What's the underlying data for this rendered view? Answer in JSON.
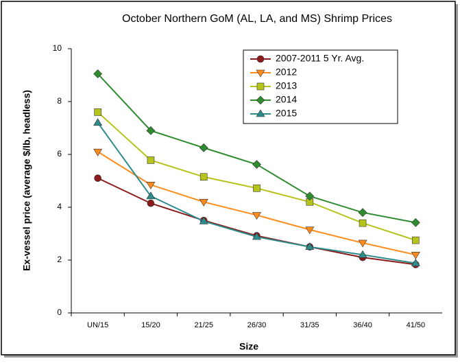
{
  "chart_data": {
    "type": "line",
    "title": "October Northern GoM (AL, LA, and MS) Shrimp Prices",
    "x_label": "Size",
    "y_label": "Ex-vessel price (average $/lb, headless)",
    "categories": [
      "UN/15",
      "15/20",
      "21/25",
      "26/30",
      "31/35",
      "36/40",
      "41/50"
    ],
    "series": [
      {
        "name": "2007-2011 5 Yr. Avg.",
        "color": "#8b1a1a",
        "marker": "circle",
        "values": [
          5.1,
          4.15,
          3.5,
          2.92,
          2.5,
          2.1,
          1.83
        ]
      },
      {
        "name": "2012",
        "color": "#ff8c1a",
        "marker": "triangle-down",
        "values": [
          6.1,
          4.85,
          4.2,
          3.7,
          3.15,
          2.65,
          2.2
        ]
      },
      {
        "name": "2013",
        "color": "#b5c31a",
        "marker": "square",
        "values": [
          7.6,
          5.78,
          5.15,
          4.72,
          4.2,
          3.4,
          2.75
        ]
      },
      {
        "name": "2014",
        "color": "#2e8b2e",
        "marker": "diamond",
        "values": [
          9.05,
          6.9,
          6.25,
          5.62,
          4.42,
          3.8,
          3.42
        ]
      },
      {
        "name": "2015",
        "color": "#2e8b8b",
        "marker": "triangle-up",
        "values": [
          7.2,
          4.42,
          3.47,
          2.88,
          2.5,
          2.2,
          1.88
        ]
      }
    ],
    "ylim": [
      0,
      10
    ],
    "yticks": [
      0,
      2,
      4,
      6,
      8,
      10
    ],
    "grid": false,
    "legend": "top-right"
  }
}
